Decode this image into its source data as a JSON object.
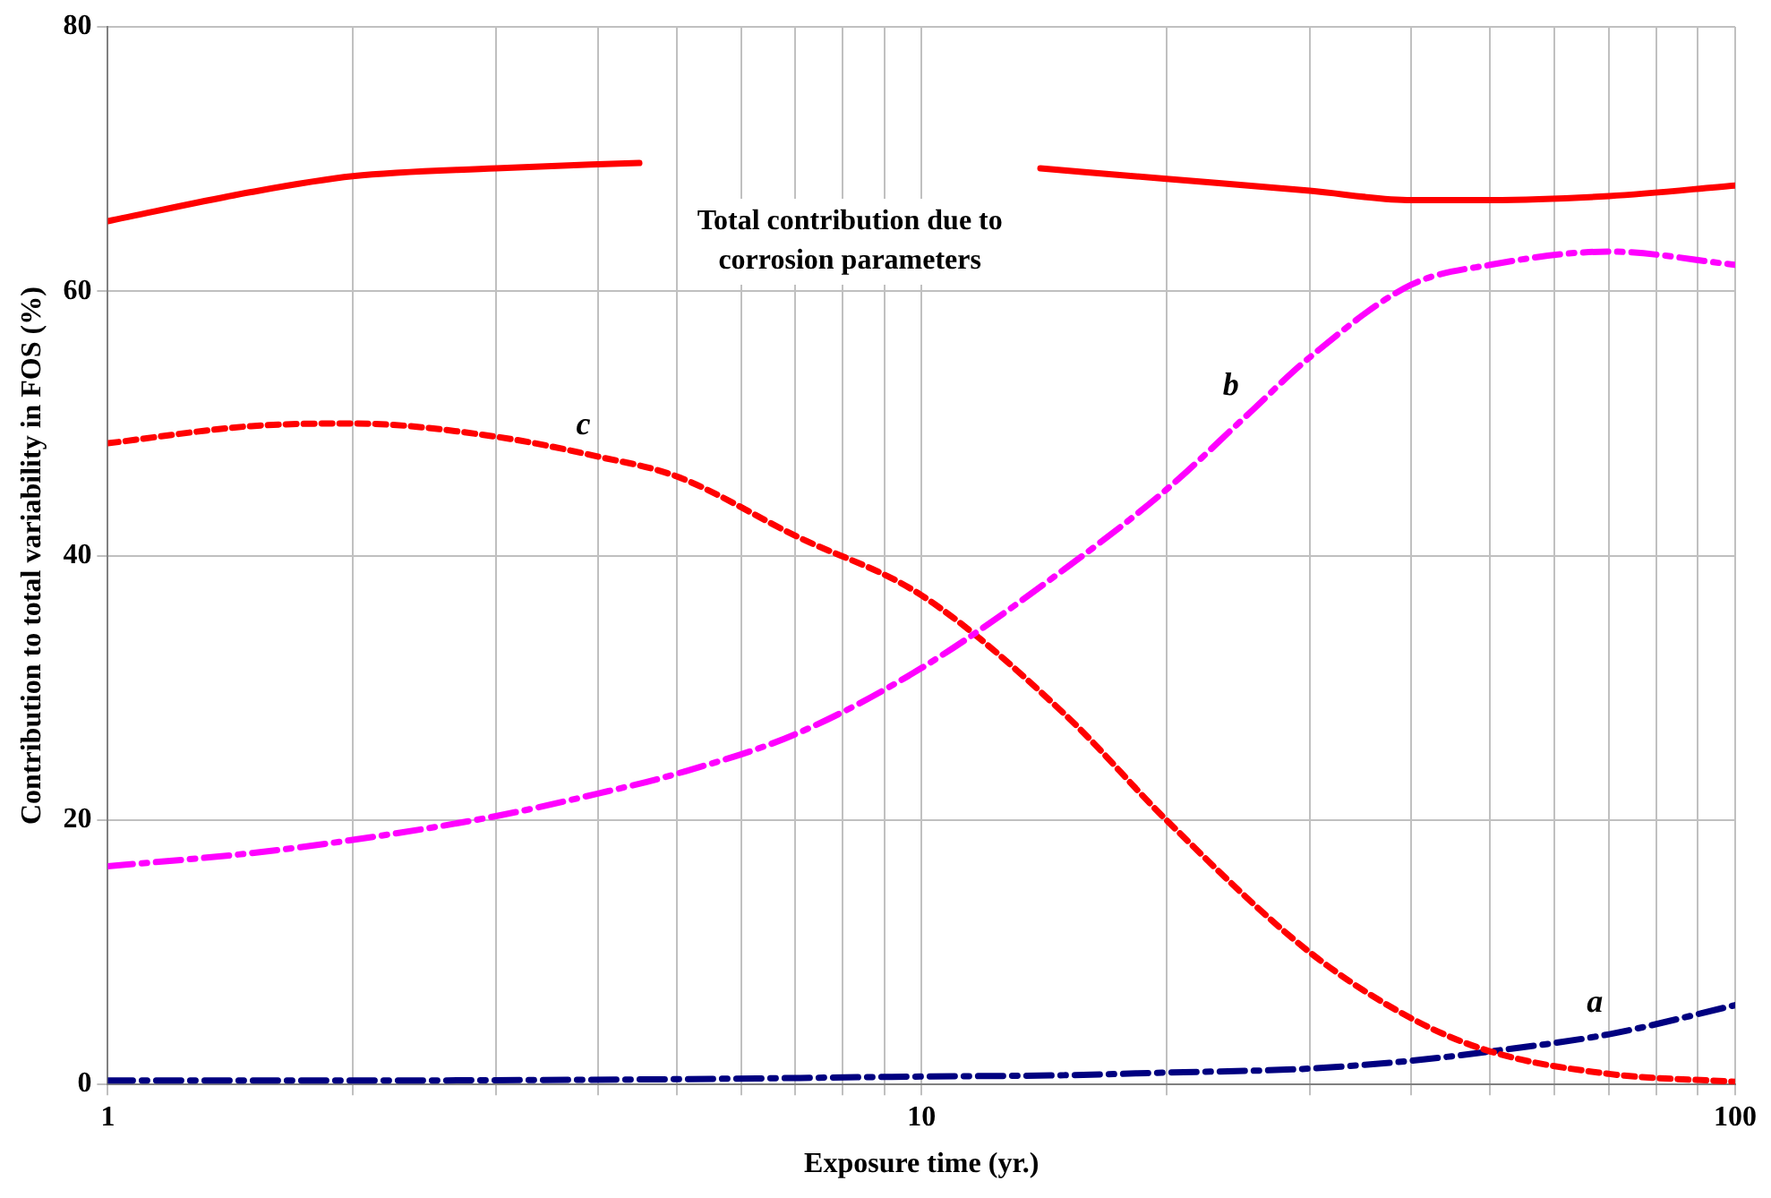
{
  "chart_data": {
    "type": "line",
    "xlabel": "Exposure time (yr.)",
    "ylabel": "Contribution to total variability in FOS (%)",
    "log": "x",
    "grid": true,
    "legend": false,
    "marker": "none",
    "xlim": [
      1,
      100
    ],
    "xticks": [
      1,
      {
        "value": 2,
        "label": null
      },
      {
        "value": 3,
        "label": null
      },
      {
        "value": 4,
        "label": null
      },
      {
        "value": 5,
        "label": null
      },
      {
        "value": 6,
        "label": null
      },
      {
        "value": 7,
        "label": null
      },
      {
        "value": 8,
        "label": null
      },
      {
        "value": 9,
        "label": null
      },
      10,
      {
        "value": 20,
        "label": null
      },
      {
        "value": 30,
        "label": null
      },
      {
        "value": 40,
        "label": null
      },
      {
        "value": 50,
        "label": null
      },
      {
        "value": 60,
        "label": null
      },
      {
        "value": 70,
        "label": null
      },
      {
        "value": 80,
        "label": null
      },
      {
        "value": 90,
        "label": null
      },
      100
    ],
    "ylim": [
      0,
      80
    ],
    "yticks": [
      0,
      20,
      40,
      60,
      80
    ],
    "series": [
      {
        "color": "#ff0000",
        "line_style": "solid",
        "x": [
          1,
          1.5,
          2,
          3,
          4,
          4.5,
          8,
          14,
          20,
          30,
          40,
          50,
          70,
          100
        ],
        "values": [
          65.3,
          67.5,
          68.7,
          69.3,
          69.6,
          69.7,
          null,
          69.3,
          68.5,
          67.6,
          66.9,
          66.9,
          67.2,
          68.0
        ]
      },
      {
        "name": "b",
        "color": "#ff00ff",
        "line_style": "dashed",
        "x": [
          1,
          1.5,
          2,
          3,
          4,
          5,
          7,
          10,
          15,
          20,
          25,
          30,
          40,
          50,
          70,
          100
        ],
        "values": [
          16.5,
          17.5,
          18.5,
          20.3,
          22,
          23.5,
          26.5,
          31.5,
          39,
          45,
          50.5,
          55,
          60.5,
          62,
          63,
          62
        ]
      },
      {
        "name": "c",
        "color": "#ff0000",
        "line_style": "dotted",
        "x": [
          1,
          1.5,
          2,
          3,
          4,
          5,
          7,
          10,
          15,
          20,
          30,
          40,
          50,
          70,
          100
        ],
        "values": [
          48.5,
          49.8,
          50,
          49,
          47.5,
          46,
          41.5,
          37,
          28,
          20,
          10,
          5,
          2.5,
          0.8,
          0.2
        ]
      },
      {
        "name": "a",
        "color": "#000080",
        "line_style": "dashed",
        "x": [
          1,
          2,
          5,
          10,
          15,
          20,
          30,
          40,
          50,
          70,
          100
        ],
        "values": [
          0.3,
          0.3,
          0.4,
          0.6,
          0.7,
          0.9,
          1.2,
          1.8,
          2.5,
          3.8,
          6
        ]
      }
    ],
    "annotations": [
      "Total contribution due to corrosion parameters"
    ]
  }
}
